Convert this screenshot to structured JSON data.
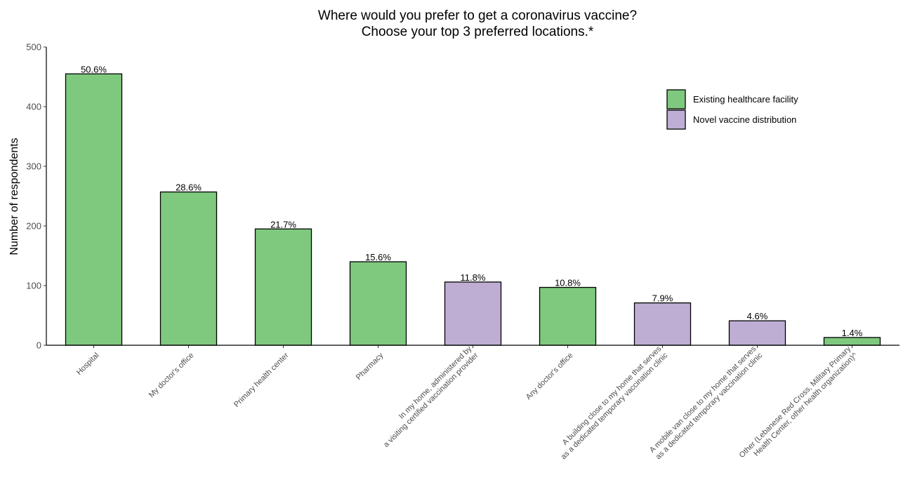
{
  "chart_data": {
    "type": "bar",
    "title": "Where would you prefer to get a coronavirus vaccine?",
    "subtitle": "Choose your top 3 preferred locations.*",
    "xlabel": "",
    "ylabel": "Number of respondents",
    "ylim": [
      0,
      500
    ],
    "yticks": [
      "0",
      "100",
      "200",
      "300",
      "400",
      "500"
    ],
    "grid": false,
    "legend_position": "top-right",
    "legend": [
      {
        "name": "Existing healthcare facility",
        "color": "#7fc97f"
      },
      {
        "name": "Novel vaccine distribution",
        "color": "#beaed4"
      }
    ],
    "categories": [
      [
        "Hospital"
      ],
      [
        "My doctor's office"
      ],
      [
        "Primary health center"
      ],
      [
        "Pharmacy"
      ],
      [
        "In my home, administered by",
        "a visiting certified vaccination provider"
      ],
      [
        "Any doctor's office"
      ],
      [
        "A building close to my home that serves",
        "as a dedicated temporary vaccination clinic"
      ],
      [
        "A mobile van close to my home that serves",
        "as a dedicated temporary vaccination clinic"
      ],
      [
        "Other (Lebanese Red Cross, Military Primary",
        "Health Center, other health organization)^"
      ]
    ],
    "values": [
      455,
      257,
      195,
      140,
      106,
      97,
      71,
      41,
      13
    ],
    "labels": [
      "50.6%",
      "28.6%",
      "21.7%",
      "15.6%",
      "11.8%",
      "10.8%",
      "7.9%",
      "4.6%",
      "1.4%"
    ],
    "groups": [
      0,
      0,
      0,
      0,
      1,
      0,
      1,
      1,
      0
    ]
  }
}
